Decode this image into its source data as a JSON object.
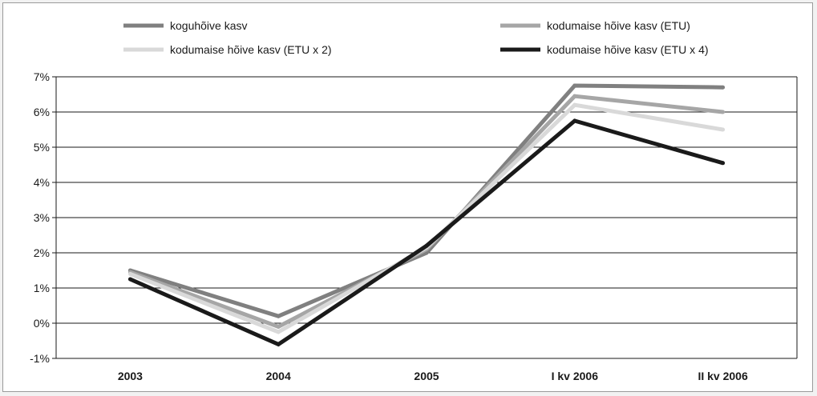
{
  "chart_data": {
    "type": "line",
    "categories": [
      "2003",
      "2004",
      "2005",
      "I kv 2006",
      "II kv 2006"
    ],
    "ylim": [
      -1,
      7
    ],
    "yticks": [
      "-1%",
      "0%",
      "1%",
      "2%",
      "3%",
      "4%",
      "5%",
      "6%",
      "7%"
    ],
    "grid": true,
    "legend_position": "top",
    "series": [
      {
        "name": "koguhõive kasv",
        "color": "#808080",
        "values": [
          1.5,
          0.2,
          2.0,
          6.75,
          6.7
        ]
      },
      {
        "name": "kodumaise hõive kasv (ETU)",
        "color": "#a6a6a6",
        "values": [
          1.45,
          -0.1,
          2.1,
          6.45,
          6.0
        ]
      },
      {
        "name": "kodumaise hõive kasv (ETU x 2)",
        "color": "#d9d9d9",
        "values": [
          1.4,
          -0.25,
          2.15,
          6.2,
          5.5
        ]
      },
      {
        "name": "kodumaise hõive kasv (ETU x 4)",
        "color": "#1a1a1a",
        "values": [
          1.25,
          -0.6,
          2.2,
          5.75,
          4.55
        ]
      }
    ]
  }
}
